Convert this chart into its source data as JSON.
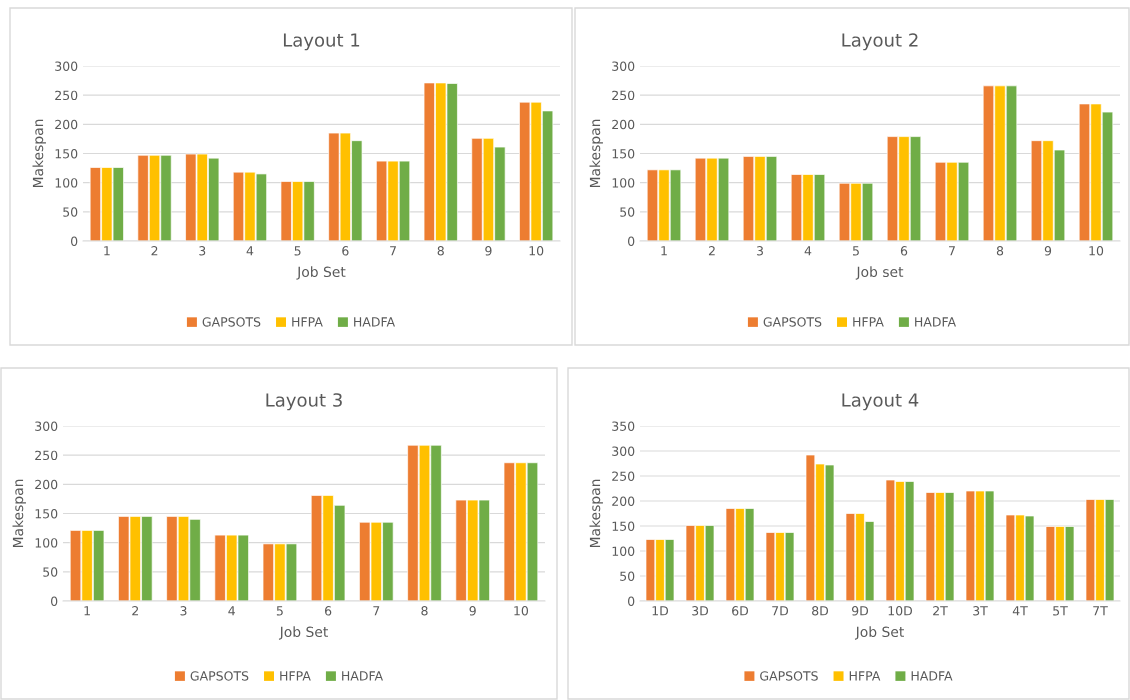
{
  "chart_data": [
    {
      "type": "bar",
      "title": "Layout 1",
      "xlabel": "Job Set",
      "ylabel": "Makespan",
      "categories": [
        "1",
        "2",
        "3",
        "4",
        "5",
        "6",
        "7",
        "8",
        "9",
        "10"
      ],
      "ylim": [
        0,
        300
      ],
      "yticks": [
        0,
        50,
        100,
        150,
        200,
        250,
        300
      ],
      "grid": "y",
      "legend": "bottom",
      "series": [
        {
          "name": "GAPSOTS",
          "color": "#ed7d31",
          "values": [
            126,
            147,
            149,
            118,
            102,
            185,
            137,
            271,
            176,
            238
          ]
        },
        {
          "name": "HFPA",
          "color": "#ffc000",
          "values": [
            126,
            147,
            149,
            118,
            102,
            185,
            137,
            271,
            176,
            238
          ]
        },
        {
          "name": "HADFA",
          "color": "#70ad47",
          "values": [
            126,
            147,
            142,
            115,
            102,
            172,
            137,
            270,
            161,
            223
          ]
        }
      ]
    },
    {
      "type": "bar",
      "title": "Layout 2",
      "xlabel": "Job set",
      "ylabel": "Makespan",
      "categories": [
        "1",
        "2",
        "3",
        "4",
        "5",
        "6",
        "7",
        "8",
        "9",
        "10"
      ],
      "ylim": [
        0,
        300
      ],
      "yticks": [
        0,
        50,
        100,
        150,
        200,
        250,
        300
      ],
      "grid": "y",
      "legend": "bottom",
      "series": [
        {
          "name": "GAPSOTS",
          "color": "#ed7d31",
          "values": [
            122,
            142,
            145,
            114,
            99,
            179,
            135,
            266,
            172,
            235
          ]
        },
        {
          "name": "HFPA",
          "color": "#ffc000",
          "values": [
            122,
            142,
            145,
            114,
            99,
            179,
            135,
            266,
            172,
            235
          ]
        },
        {
          "name": "HADFA",
          "color": "#70ad47",
          "values": [
            122,
            142,
            145,
            114,
            99,
            179,
            135,
            266,
            156,
            221
          ]
        }
      ]
    },
    {
      "type": "bar",
      "title": "Layout 3",
      "xlabel": "Job Set",
      "ylabel": "Makespan",
      "categories": [
        "1",
        "2",
        "3",
        "4",
        "5",
        "6",
        "7",
        "8",
        "9",
        "10"
      ],
      "ylim": [
        0,
        300
      ],
      "yticks": [
        0,
        50,
        100,
        150,
        200,
        250,
        300
      ],
      "grid": "y",
      "legend": "bottom",
      "series": [
        {
          "name": "GAPSOTS",
          "color": "#ed7d31",
          "values": [
            121,
            145,
            145,
            113,
            98,
            181,
            135,
            267,
            173,
            237
          ]
        },
        {
          "name": "HFPA",
          "color": "#ffc000",
          "values": [
            121,
            145,
            145,
            113,
            98,
            181,
            135,
            267,
            173,
            237
          ]
        },
        {
          "name": "HADFA",
          "color": "#70ad47",
          "values": [
            121,
            145,
            140,
            113,
            98,
            164,
            135,
            267,
            173,
            237
          ]
        }
      ]
    },
    {
      "type": "bar",
      "title": "Layout 4",
      "xlabel": "Job Set",
      "ylabel": "Makespan",
      "categories": [
        "1D",
        "3D",
        "6D",
        "7D",
        "8D",
        "9D",
        "10D",
        "2T",
        "3T",
        "4T",
        "5T",
        "7T"
      ],
      "ylim": [
        0,
        350
      ],
      "yticks": [
        0,
        50,
        100,
        150,
        200,
        250,
        300,
        350
      ],
      "grid": "y",
      "legend": "bottom",
      "series": [
        {
          "name": "GAPSOTS",
          "color": "#ed7d31",
          "values": [
            123,
            151,
            185,
            137,
            292,
            175,
            242,
            217,
            220,
            172,
            149,
            203
          ]
        },
        {
          "name": "HFPA",
          "color": "#ffc000",
          "values": [
            123,
            151,
            185,
            137,
            274,
            175,
            239,
            217,
            220,
            172,
            149,
            203
          ]
        },
        {
          "name": "HADFA",
          "color": "#70ad47",
          "values": [
            123,
            151,
            185,
            137,
            272,
            159,
            239,
            217,
            220,
            170,
            149,
            203
          ]
        }
      ]
    }
  ]
}
